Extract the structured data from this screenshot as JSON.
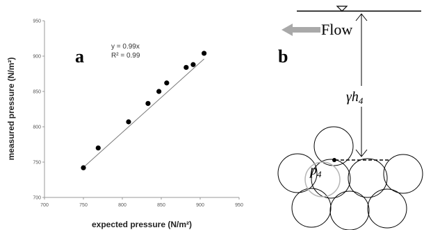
{
  "panel_a": {
    "letter": "a",
    "equation": "y = 0.99x",
    "r_squared": "R² = 0.99",
    "xlabel": "expected pressure (N/m²)",
    "ylabel": "measured pressure (N/m²)"
  },
  "panel_b": {
    "letter": "b",
    "flow_label": "Flow",
    "head_symbol": "γ",
    "head_var": "h",
    "head_sub": "4",
    "pressure_var": "p",
    "pressure_sub": "4"
  },
  "chart_data": {
    "type": "scatter",
    "title": "",
    "xlabel": "expected pressure (N/m²)",
    "ylabel": "measured pressure (N/m²)",
    "xlim": [
      700,
      950
    ],
    "ylim": [
      700,
      950
    ],
    "xticks": [
      "700",
      "750",
      "800",
      "850",
      "900",
      "950"
    ],
    "yticks": [
      "700",
      "750",
      "800",
      "850",
      "900",
      "950"
    ],
    "grid": false,
    "points": [
      {
        "x": 750,
        "y": 742
      },
      {
        "x": 769,
        "y": 770
      },
      {
        "x": 808,
        "y": 807
      },
      {
        "x": 833,
        "y": 833
      },
      {
        "x": 847,
        "y": 850
      },
      {
        "x": 857,
        "y": 862
      },
      {
        "x": 882,
        "y": 884
      },
      {
        "x": 891,
        "y": 888
      },
      {
        "x": 905,
        "y": 904
      }
    ],
    "fit": {
      "slope": 0.99,
      "equation": "y = 0.99x",
      "r2": "R² = 0.99",
      "x_range": [
        750,
        905
      ]
    }
  }
}
